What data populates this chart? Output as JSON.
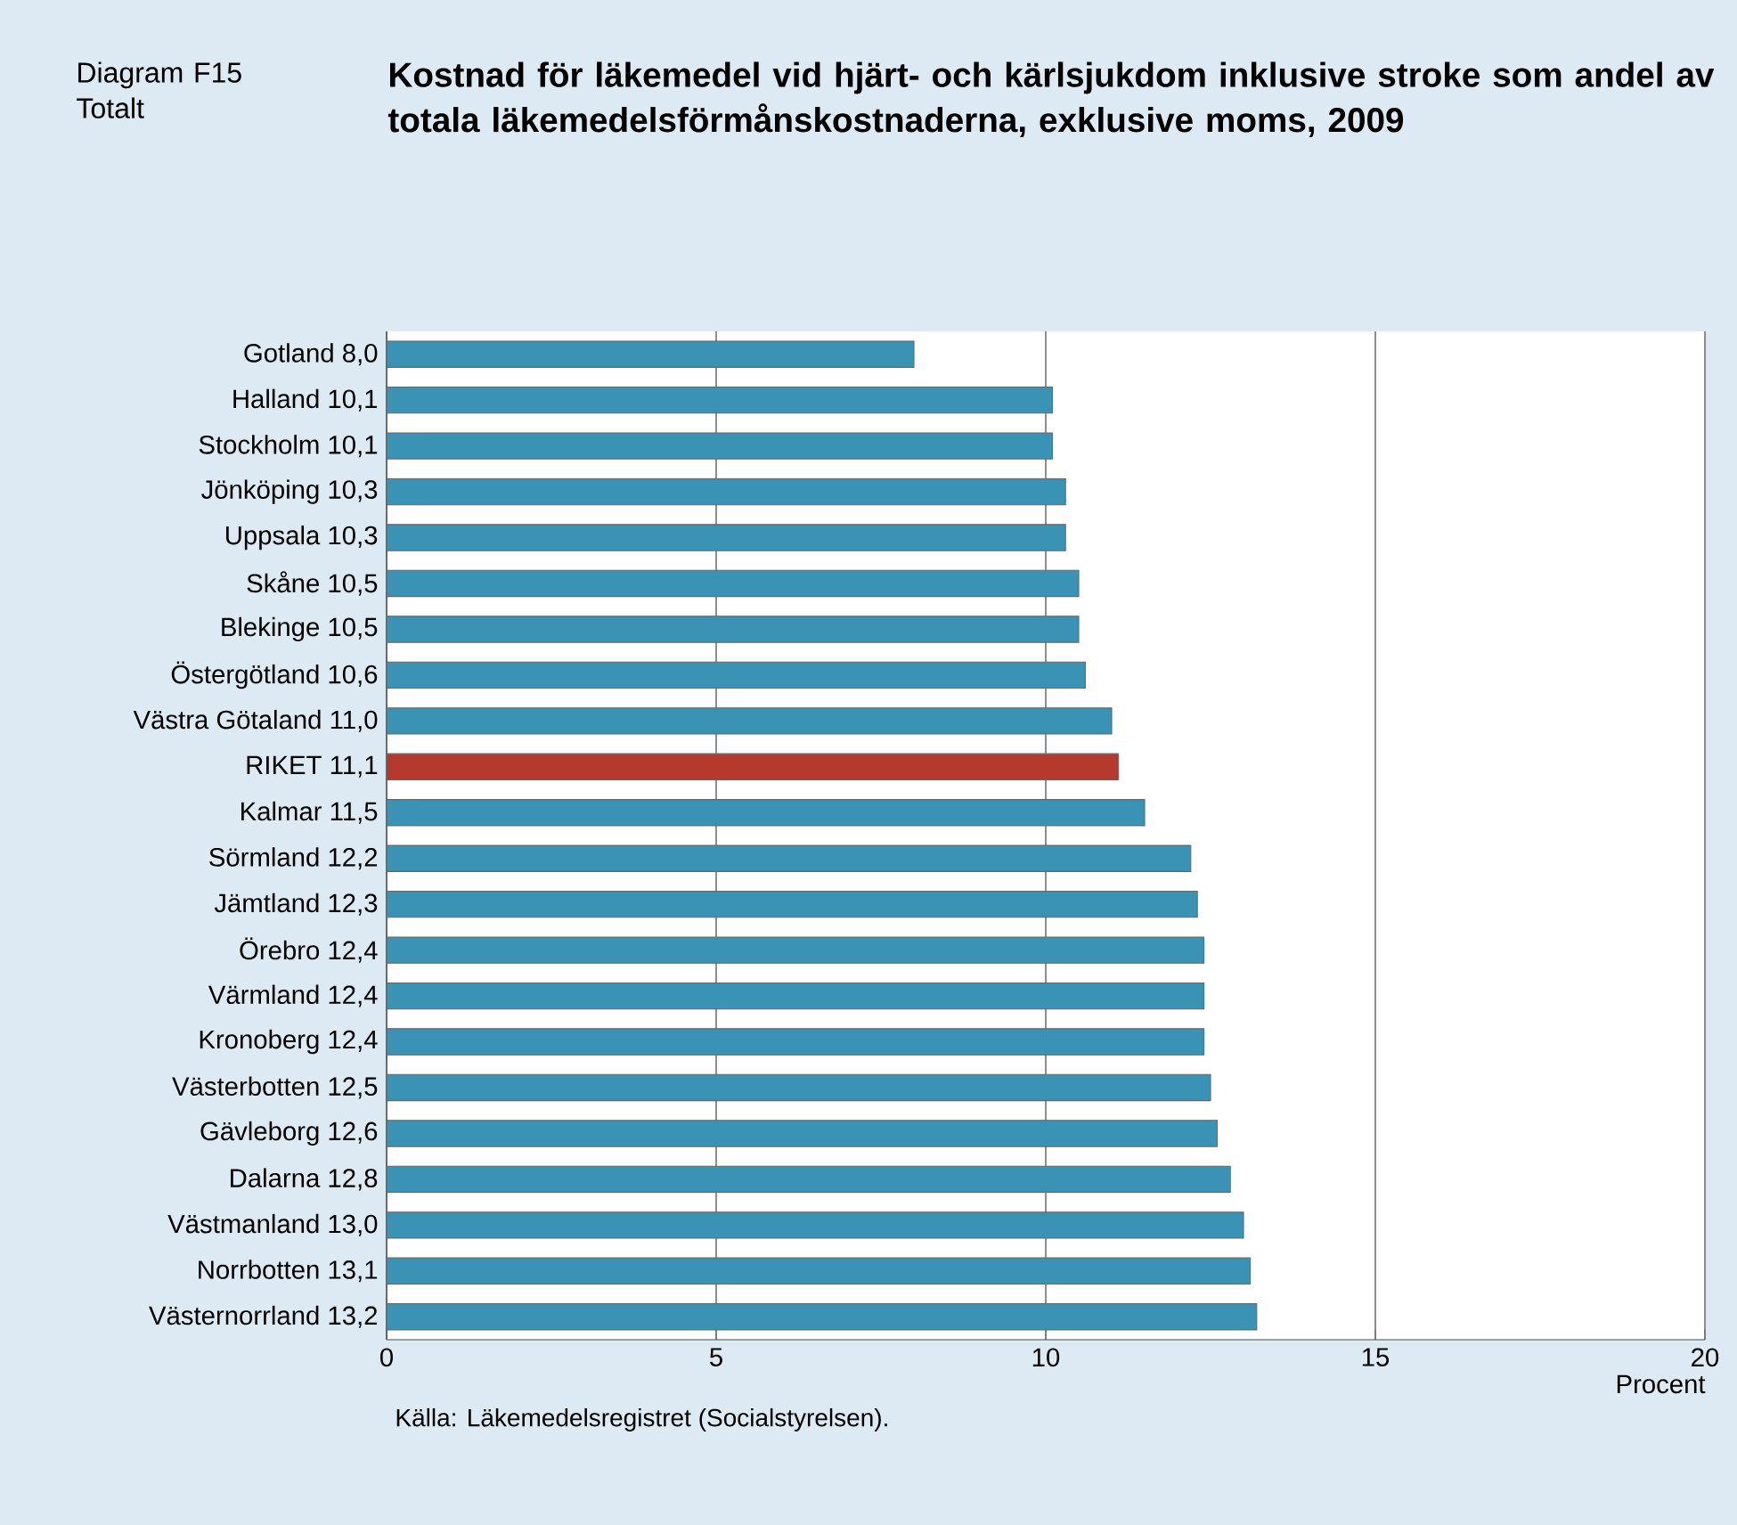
{
  "chart_data": {
    "type": "bar",
    "orientation": "horizontal",
    "title": "Kostnad för läkemedel vid hjärt- och kärlsjukdom inklusive stroke som andel av totala läkemedelsförmånskostnaderna, exklusive moms, 2009",
    "subtitle": "Diagram F15 Totalt",
    "xlabel": "Procent",
    "annotations": [
      "Källa: Läkemedelsregistret (Socialstyrelsen)."
    ],
    "categories": [
      "Gotland 8,0",
      "Halland 10,1",
      "Stockholm 10,1",
      "Jönköping 10,3",
      "Uppsala 10,3",
      "Skåne 10,5",
      "Blekinge 10,5",
      "Östergötland 10,6",
      "Västra Götaland 11,0",
      "RIKET 11,1",
      "Kalmar 11,5",
      "Sörmland 12,2",
      "Jämtland 12,3",
      "Örebro 12,4",
      "Värmland 12,4",
      "Kronoberg 12,4",
      "Västerbotten 12,5",
      "Gävleborg 12,6",
      "Dalarna 12,8",
      "Västmanland 13,0",
      "Norrbotten 13,1",
      "Västernorrland 13,2"
    ],
    "values": [
      8.0,
      10.1,
      10.1,
      10.3,
      10.3,
      10.5,
      10.5,
      10.6,
      11.0,
      11.1,
      11.5,
      12.2,
      12.3,
      12.4,
      12.4,
      12.4,
      12.5,
      12.6,
      12.8,
      13.0,
      13.1,
      13.2
    ],
    "colors": [
      "#3a93b4",
      "#3a93b4",
      "#3a93b4",
      "#3a93b4",
      "#3a93b4",
      "#3a93b4",
      "#3a93b4",
      "#3a93b4",
      "#3a93b4",
      "#b5392c",
      "#3a93b4",
      "#3a93b4",
      "#3a93b4",
      "#3a93b4",
      "#3a93b4",
      "#3a93b4",
      "#3a93b4",
      "#3a93b4",
      "#3a93b4",
      "#3a93b4",
      "#3a93b4",
      "#3a93b4"
    ],
    "xlim": [
      0,
      20
    ],
    "xticks": [
      0,
      5,
      10,
      15,
      20
    ],
    "grid": "x"
  }
}
